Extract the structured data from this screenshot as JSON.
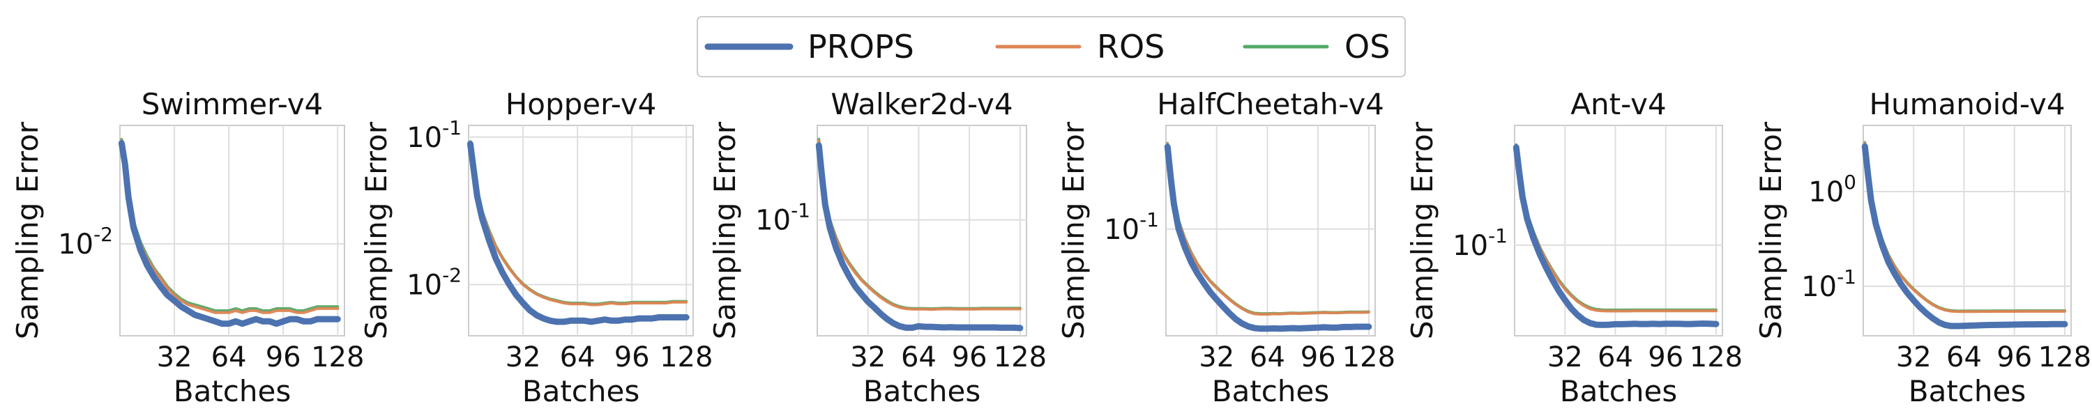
{
  "legend": {
    "placement": "top-center",
    "entries": [
      {
        "label": "PROPS",
        "color": "#4C72B0"
      },
      {
        "label": "ROS",
        "color": "#DD8452"
      },
      {
        "label": "OS",
        "color": "#55A868"
      }
    ]
  },
  "chart_data": [
    {
      "type": "line",
      "title": "Swimmer-v4",
      "xlabel": "Batches",
      "ylabel": "Sampling Error",
      "yscale": "log",
      "xlim": [
        0,
        132
      ],
      "ylim": [
        0.0045,
        0.028
      ],
      "grid": true,
      "xticks": [
        32,
        64,
        96,
        128
      ],
      "xtick_labels": [
        "32",
        "64",
        "96",
        "128"
      ],
      "yticks": [
        0.01
      ],
      "ytick_labels": [
        "10^-2"
      ],
      "x": [
        1,
        3,
        5,
        8,
        12,
        16,
        20,
        24,
        28,
        32,
        36,
        40,
        44,
        48,
        52,
        56,
        60,
        64,
        68,
        72,
        76,
        80,
        84,
        88,
        92,
        96,
        100,
        104,
        108,
        112,
        116,
        120,
        124,
        128
      ],
      "series": [
        {
          "name": "PROPS",
          "values": [
            0.024,
            0.02,
            0.015,
            0.0115,
            0.0095,
            0.0083,
            0.0075,
            0.0069,
            0.0064,
            0.0061,
            0.0058,
            0.0056,
            0.0054,
            0.0053,
            0.0052,
            0.0051,
            0.005,
            0.005,
            0.0051,
            0.005,
            0.0051,
            0.0052,
            0.0051,
            0.0051,
            0.005,
            0.0051,
            0.0052,
            0.0052,
            0.0051,
            0.0051,
            0.0052,
            0.0052,
            0.0052,
            0.0052
          ]
        },
        {
          "name": "ROS",
          "values": [
            0.0245,
            0.0205,
            0.0155,
            0.012,
            0.01,
            0.0088,
            0.008,
            0.0074,
            0.0068,
            0.0064,
            0.0061,
            0.0059,
            0.0058,
            0.0057,
            0.0056,
            0.0055,
            0.0055,
            0.0055,
            0.0056,
            0.0055,
            0.0056,
            0.0056,
            0.0055,
            0.0055,
            0.0056,
            0.0056,
            0.0056,
            0.0055,
            0.0055,
            0.0056,
            0.0057,
            0.0057,
            0.0057,
            0.0057
          ]
        },
        {
          "name": "OS",
          "values": [
            0.0248,
            0.0208,
            0.0158,
            0.0122,
            0.0102,
            0.009,
            0.0081,
            0.0075,
            0.0069,
            0.0065,
            0.0062,
            0.006,
            0.0059,
            0.0058,
            0.0057,
            0.0056,
            0.0056,
            0.0056,
            0.0057,
            0.0056,
            0.0057,
            0.0057,
            0.0056,
            0.0056,
            0.0057,
            0.0057,
            0.0057,
            0.0056,
            0.0056,
            0.0057,
            0.0058,
            0.0058,
            0.0058,
            0.0058
          ]
        }
      ]
    },
    {
      "type": "line",
      "title": "Hopper-v4",
      "xlabel": "Batches",
      "ylabel": "Sampling Error",
      "yscale": "log",
      "xlim": [
        0,
        132
      ],
      "ylim": [
        0.0045,
        0.12
      ],
      "grid": true,
      "xticks": [
        32,
        64,
        96,
        128
      ],
      "xtick_labels": [
        "32",
        "64",
        "96",
        "128"
      ],
      "yticks": [
        0.01,
        0.1
      ],
      "ytick_labels": [
        "10^-2",
        "10^-1"
      ],
      "x": [
        1,
        3,
        5,
        8,
        12,
        16,
        20,
        24,
        28,
        32,
        36,
        40,
        44,
        48,
        52,
        56,
        60,
        64,
        68,
        72,
        76,
        80,
        84,
        88,
        92,
        96,
        100,
        104,
        108,
        112,
        116,
        120,
        124,
        128
      ],
      "series": [
        {
          "name": "PROPS",
          "values": [
            0.09,
            0.06,
            0.04,
            0.028,
            0.02,
            0.015,
            0.012,
            0.01,
            0.0085,
            0.0075,
            0.0067,
            0.0062,
            0.0059,
            0.0057,
            0.0056,
            0.0056,
            0.0057,
            0.0057,
            0.0057,
            0.0056,
            0.0057,
            0.0058,
            0.0057,
            0.0057,
            0.0058,
            0.0058,
            0.0059,
            0.0059,
            0.0059,
            0.006,
            0.006,
            0.006,
            0.006,
            0.006
          ]
        },
        {
          "name": "ROS",
          "values": [
            0.092,
            0.063,
            0.043,
            0.031,
            0.023,
            0.018,
            0.015,
            0.0128,
            0.0112,
            0.01,
            0.0092,
            0.0086,
            0.0082,
            0.0079,
            0.0077,
            0.0075,
            0.0074,
            0.0074,
            0.0074,
            0.0073,
            0.0073,
            0.0074,
            0.0075,
            0.0074,
            0.0074,
            0.0075,
            0.0075,
            0.0075,
            0.0075,
            0.0075,
            0.0075,
            0.0076,
            0.0076,
            0.0076
          ]
        },
        {
          "name": "OS",
          "values": [
            0.093,
            0.064,
            0.044,
            0.0315,
            0.0235,
            0.0183,
            0.0152,
            0.013,
            0.0113,
            0.0101,
            0.0093,
            0.0087,
            0.0083,
            0.008,
            0.0078,
            0.0076,
            0.0075,
            0.0075,
            0.0075,
            0.0074,
            0.0074,
            0.0075,
            0.0076,
            0.0075,
            0.0075,
            0.0076,
            0.0076,
            0.0076,
            0.0076,
            0.0076,
            0.0076,
            0.0077,
            0.0077,
            0.0077
          ]
        }
      ]
    },
    {
      "type": "line",
      "title": "Walker2d-v4",
      "xlabel": "Batches",
      "ylabel": "Sampling Error",
      "yscale": "log",
      "xlim": [
        0,
        132
      ],
      "ylim": [
        0.024,
        0.32
      ],
      "grid": true,
      "xticks": [
        32,
        64,
        96,
        128
      ],
      "xtick_labels": [
        "32",
        "64",
        "96",
        "128"
      ],
      "yticks": [
        0.1
      ],
      "ytick_labels": [
        "10^-1"
      ],
      "x": [
        1,
        3,
        5,
        8,
        12,
        16,
        20,
        24,
        28,
        32,
        36,
        40,
        44,
        48,
        52,
        56,
        60,
        64,
        68,
        72,
        76,
        80,
        84,
        88,
        92,
        96,
        100,
        104,
        108,
        112,
        116,
        120,
        124,
        128
      ],
      "series": [
        {
          "name": "PROPS",
          "values": [
            0.25,
            0.17,
            0.12,
            0.09,
            0.07,
            0.058,
            0.05,
            0.044,
            0.04,
            0.0365,
            0.034,
            0.0315,
            0.0295,
            0.028,
            0.027,
            0.0265,
            0.0265,
            0.027,
            0.0268,
            0.0268,
            0.0267,
            0.0266,
            0.0267,
            0.0266,
            0.0266,
            0.0266,
            0.0266,
            0.0266,
            0.0266,
            0.0266,
            0.0265,
            0.0265,
            0.0265,
            0.0264
          ]
        },
        {
          "name": "ROS",
          "values": [
            0.265,
            0.18,
            0.13,
            0.098,
            0.079,
            0.066,
            0.058,
            0.052,
            0.0475,
            0.044,
            0.041,
            0.0385,
            0.0365,
            0.035,
            0.034,
            0.0335,
            0.0333,
            0.0333,
            0.0333,
            0.0332,
            0.0333,
            0.0334,
            0.0334,
            0.0333,
            0.0333,
            0.0333,
            0.0333,
            0.0334,
            0.0334,
            0.0334,
            0.0334,
            0.0334,
            0.0334,
            0.0334
          ]
        },
        {
          "name": "OS",
          "values": [
            0.27,
            0.185,
            0.133,
            0.1,
            0.08,
            0.067,
            0.059,
            0.053,
            0.048,
            0.0445,
            0.0415,
            0.039,
            0.037,
            0.0354,
            0.0344,
            0.0338,
            0.0336,
            0.0336,
            0.0336,
            0.0335,
            0.0336,
            0.0337,
            0.0337,
            0.0336,
            0.0336,
            0.0336,
            0.0336,
            0.0337,
            0.0337,
            0.0337,
            0.0337,
            0.0337,
            0.0337,
            0.0337
          ]
        }
      ]
    },
    {
      "type": "line",
      "title": "HalfCheetah-v4",
      "xlabel": "Batches",
      "ylabel": "Sampling Error",
      "yscale": "log",
      "xlim": [
        0,
        132
      ],
      "ylim": [
        0.024,
        0.4
      ],
      "grid": true,
      "xticks": [
        32,
        64,
        96,
        128
      ],
      "xtick_labels": [
        "32",
        "64",
        "96",
        "128"
      ],
      "yticks": [
        0.1
      ],
      "ytick_labels": [
        "10^-1"
      ],
      "x": [
        1,
        3,
        5,
        8,
        12,
        16,
        20,
        24,
        28,
        32,
        36,
        40,
        44,
        48,
        52,
        56,
        60,
        64,
        68,
        72,
        76,
        80,
        84,
        88,
        92,
        96,
        100,
        104,
        108,
        112,
        116,
        120,
        124,
        128
      ],
      "series": [
        {
          "name": "PROPS",
          "values": [
            0.3,
            0.2,
            0.14,
            0.1,
            0.078,
            0.064,
            0.055,
            0.0485,
            0.043,
            0.039,
            0.0355,
            0.0325,
            0.03,
            0.0283,
            0.0272,
            0.0266,
            0.0264,
            0.0264,
            0.0265,
            0.0264,
            0.0265,
            0.0266,
            0.0265,
            0.0266,
            0.0267,
            0.0268,
            0.0269,
            0.0268,
            0.0268,
            0.027,
            0.027,
            0.0271,
            0.0271,
            0.0271
          ]
        },
        {
          "name": "ROS",
          "values": [
            0.31,
            0.21,
            0.15,
            0.11,
            0.087,
            0.072,
            0.062,
            0.055,
            0.0495,
            0.0455,
            0.042,
            0.039,
            0.0365,
            0.0345,
            0.033,
            0.0322,
            0.032,
            0.032,
            0.0322,
            0.0321,
            0.0323,
            0.0324,
            0.0323,
            0.0324,
            0.0325,
            0.0326,
            0.0327,
            0.0326,
            0.0326,
            0.0327,
            0.0328,
            0.0328,
            0.0328,
            0.0329
          ]
        },
        {
          "name": "OS",
          "values": [
            0.315,
            0.215,
            0.153,
            0.112,
            0.088,
            0.073,
            0.0625,
            0.0555,
            0.05,
            0.046,
            0.0424,
            0.0394,
            0.0368,
            0.0348,
            0.0333,
            0.0325,
            0.0323,
            0.0323,
            0.0324,
            0.0323,
            0.0325,
            0.0326,
            0.0325,
            0.0326,
            0.0327,
            0.0328,
            0.0329,
            0.0328,
            0.0328,
            0.0329,
            0.033,
            0.033,
            0.033,
            0.0331
          ]
        }
      ]
    },
    {
      "type": "line",
      "title": "Ant-v4",
      "xlabel": "Batches",
      "ylabel": "Sampling Error",
      "yscale": "log",
      "xlim": [
        0,
        132
      ],
      "ylim": [
        0.035,
        0.4
      ],
      "grid": true,
      "xticks": [
        32,
        64,
        96,
        128
      ],
      "xtick_labels": [
        "32",
        "64",
        "96",
        "128"
      ],
      "yticks": [
        0.1
      ],
      "ytick_labels": [
        "10^-1"
      ],
      "x": [
        1,
        3,
        5,
        8,
        12,
        16,
        20,
        24,
        28,
        32,
        36,
        40,
        44,
        48,
        52,
        56,
        60,
        64,
        68,
        72,
        76,
        80,
        84,
        88,
        92,
        96,
        100,
        104,
        108,
        112,
        116,
        120,
        124,
        128
      ],
      "series": [
        {
          "name": "PROPS",
          "values": [
            0.31,
            0.23,
            0.175,
            0.135,
            0.108,
            0.09,
            0.077,
            0.067,
            0.059,
            0.053,
            0.048,
            0.0445,
            0.042,
            0.0405,
            0.0398,
            0.0397,
            0.0398,
            0.04,
            0.04,
            0.0401,
            0.0402,
            0.0401,
            0.0401,
            0.0402,
            0.0401,
            0.0402,
            0.0402,
            0.0402,
            0.0401,
            0.0401,
            0.0402,
            0.0403,
            0.0402,
            0.0401
          ]
        },
        {
          "name": "ROS",
          "values": [
            0.315,
            0.235,
            0.18,
            0.142,
            0.115,
            0.097,
            0.084,
            0.074,
            0.066,
            0.06,
            0.0555,
            0.052,
            0.0495,
            0.0478,
            0.047,
            0.0467,
            0.0466,
            0.0466,
            0.0466,
            0.0466,
            0.0467,
            0.0467,
            0.0467,
            0.0467,
            0.0467,
            0.0467,
            0.0467,
            0.0467,
            0.0467,
            0.0467,
            0.0467,
            0.0467,
            0.0467,
            0.0467
          ]
        },
        {
          "name": "OS",
          "values": [
            0.32,
            0.24,
            0.183,
            0.144,
            0.117,
            0.098,
            0.085,
            0.075,
            0.067,
            0.061,
            0.0563,
            0.0527,
            0.0502,
            0.0485,
            0.0476,
            0.0473,
            0.0472,
            0.0472,
            0.0472,
            0.0472,
            0.0473,
            0.0473,
            0.0473,
            0.0473,
            0.0473,
            0.0473,
            0.0473,
            0.0473,
            0.0473,
            0.0473,
            0.0473,
            0.0473,
            0.0473,
            0.0473
          ]
        }
      ]
    },
    {
      "type": "line",
      "title": "Humanoid-v4",
      "xlabel": "Batches",
      "ylabel": "Sampling Error",
      "yscale": "log",
      "xlim": [
        0,
        132
      ],
      "ylim": [
        0.03,
        5
      ],
      "grid": true,
      "xticks": [
        32,
        64,
        96,
        128
      ],
      "xtick_labels": [
        "32",
        "64",
        "96",
        "128"
      ],
      "yticks": [
        0.1,
        1
      ],
      "ytick_labels": [
        "10^-1",
        "10^0"
      ],
      "x": [
        1,
        3,
        5,
        8,
        12,
        16,
        20,
        24,
        28,
        32,
        36,
        40,
        44,
        48,
        52,
        56,
        60,
        64,
        68,
        72,
        76,
        80,
        84,
        88,
        92,
        96,
        100,
        104,
        108,
        112,
        116,
        120,
        124,
        128
      ],
      "series": [
        {
          "name": "PROPS",
          "values": [
            3.0,
            1.5,
            0.8,
            0.45,
            0.27,
            0.18,
            0.135,
            0.105,
            0.085,
            0.071,
            0.06,
            0.052,
            0.046,
            0.0415,
            0.039,
            0.038,
            0.038,
            0.0382,
            0.0384,
            0.0386,
            0.0388,
            0.039,
            0.0391,
            0.0392,
            0.0393,
            0.0394,
            0.0395,
            0.0396,
            0.0396,
            0.0397,
            0.0397,
            0.0398,
            0.0398,
            0.0398
          ]
        },
        {
          "name": "ROS",
          "values": [
            3.2,
            1.6,
            0.86,
            0.5,
            0.31,
            0.21,
            0.16,
            0.128,
            0.107,
            0.092,
            0.08,
            0.071,
            0.064,
            0.059,
            0.056,
            0.0545,
            0.054,
            0.054,
            0.0541,
            0.0541,
            0.0542,
            0.0542,
            0.0543,
            0.0543,
            0.0543,
            0.0543,
            0.0544,
            0.0544,
            0.0544,
            0.0544,
            0.0544,
            0.0544,
            0.0544,
            0.0544
          ]
        },
        {
          "name": "OS",
          "values": [
            3.3,
            1.65,
            0.88,
            0.51,
            0.315,
            0.215,
            0.163,
            0.13,
            0.109,
            0.0935,
            0.0815,
            0.072,
            0.065,
            0.06,
            0.0568,
            0.0553,
            0.0548,
            0.0548,
            0.0549,
            0.0549,
            0.055,
            0.055,
            0.0551,
            0.0551,
            0.0551,
            0.0551,
            0.0552,
            0.0552,
            0.0552,
            0.0552,
            0.0552,
            0.0552,
            0.0552,
            0.0552
          ]
        }
      ]
    }
  ]
}
